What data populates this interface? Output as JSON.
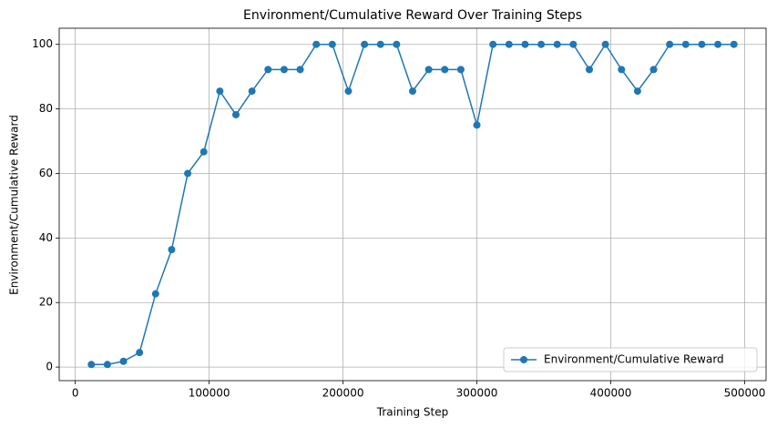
{
  "chart_data": {
    "type": "line",
    "title": "Environment/Cumulative Reward Over Training Steps",
    "x_label": "Training Step",
    "y_label": "Environment/Cumulative Reward",
    "x": [
      12000,
      24000,
      36000,
      48000,
      60000,
      72000,
      84000,
      96000,
      108000,
      120000,
      132000,
      144000,
      156000,
      168000,
      180000,
      192000,
      204000,
      216000,
      228000,
      240000,
      252000,
      264000,
      276000,
      288000,
      300000,
      312000,
      324000,
      336000,
      348000,
      360000,
      372000,
      384000,
      396000,
      408000,
      420000,
      432000,
      444000,
      456000,
      468000,
      480000,
      492000
    ],
    "series": [
      {
        "name": "Environment/Cumulative Reward",
        "color": "#1f77b4",
        "values": [
          0.8,
          0.8,
          1.8,
          4.5,
          22.7,
          36.4,
          60,
          66.7,
          85.5,
          78.2,
          85.5,
          92.2,
          92.2,
          92.2,
          100,
          100,
          85.5,
          100,
          100,
          100,
          85.5,
          92.2,
          92.2,
          92.2,
          75,
          100,
          100,
          100,
          100,
          100,
          100,
          92.2,
          100,
          92.2,
          85.5,
          92.2,
          100,
          100,
          100,
          100,
          100
        ]
      }
    ],
    "xlim": [
      -12000,
      516000
    ],
    "ylim": [
      -4.2,
      105
    ],
    "xticks": [
      0,
      100000,
      200000,
      300000,
      400000,
      500000
    ],
    "yticks": [
      0,
      20,
      40,
      60,
      80,
      100
    ],
    "grid": true,
    "legend": "lower right"
  }
}
